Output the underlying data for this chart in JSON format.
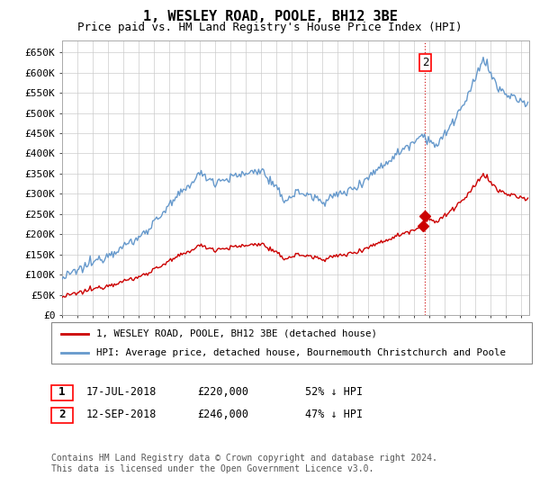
{
  "title": "1, WESLEY ROAD, POOLE, BH12 3BE",
  "subtitle": "Price paid vs. HM Land Registry's House Price Index (HPI)",
  "ylim": [
    0,
    680000
  ],
  "yticks": [
    0,
    50000,
    100000,
    150000,
    200000,
    250000,
    300000,
    350000,
    400000,
    450000,
    500000,
    550000,
    600000,
    650000
  ],
  "ytick_labels": [
    "£0",
    "£50K",
    "£100K",
    "£150K",
    "£200K",
    "£250K",
    "£300K",
    "£350K",
    "£400K",
    "£450K",
    "£500K",
    "£550K",
    "£600K",
    "£650K"
  ],
  "hpi_color": "#6699cc",
  "price_color": "#cc0000",
  "annotation1": {
    "label": "1",
    "date_str": "17-JUL-2018",
    "price": 220000,
    "pct": "52%",
    "dir": "↓"
  },
  "annotation2": {
    "label": "2",
    "date_str": "12-SEP-2018",
    "price": 246000,
    "pct": "47%",
    "dir": "↓"
  },
  "legend_line1": "1, WESLEY ROAD, POOLE, BH12 3BE (detached house)",
  "legend_line2": "HPI: Average price, detached house, Bournemouth Christchurch and Poole",
  "footer": "Contains HM Land Registry data © Crown copyright and database right 2024.\nThis data is licensed under the Open Government Licence v3.0.",
  "bg_color": "#ffffff",
  "grid_color": "#cccccc",
  "title_fontsize": 11,
  "subtitle_fontsize": 9,
  "tick_fontsize": 8
}
